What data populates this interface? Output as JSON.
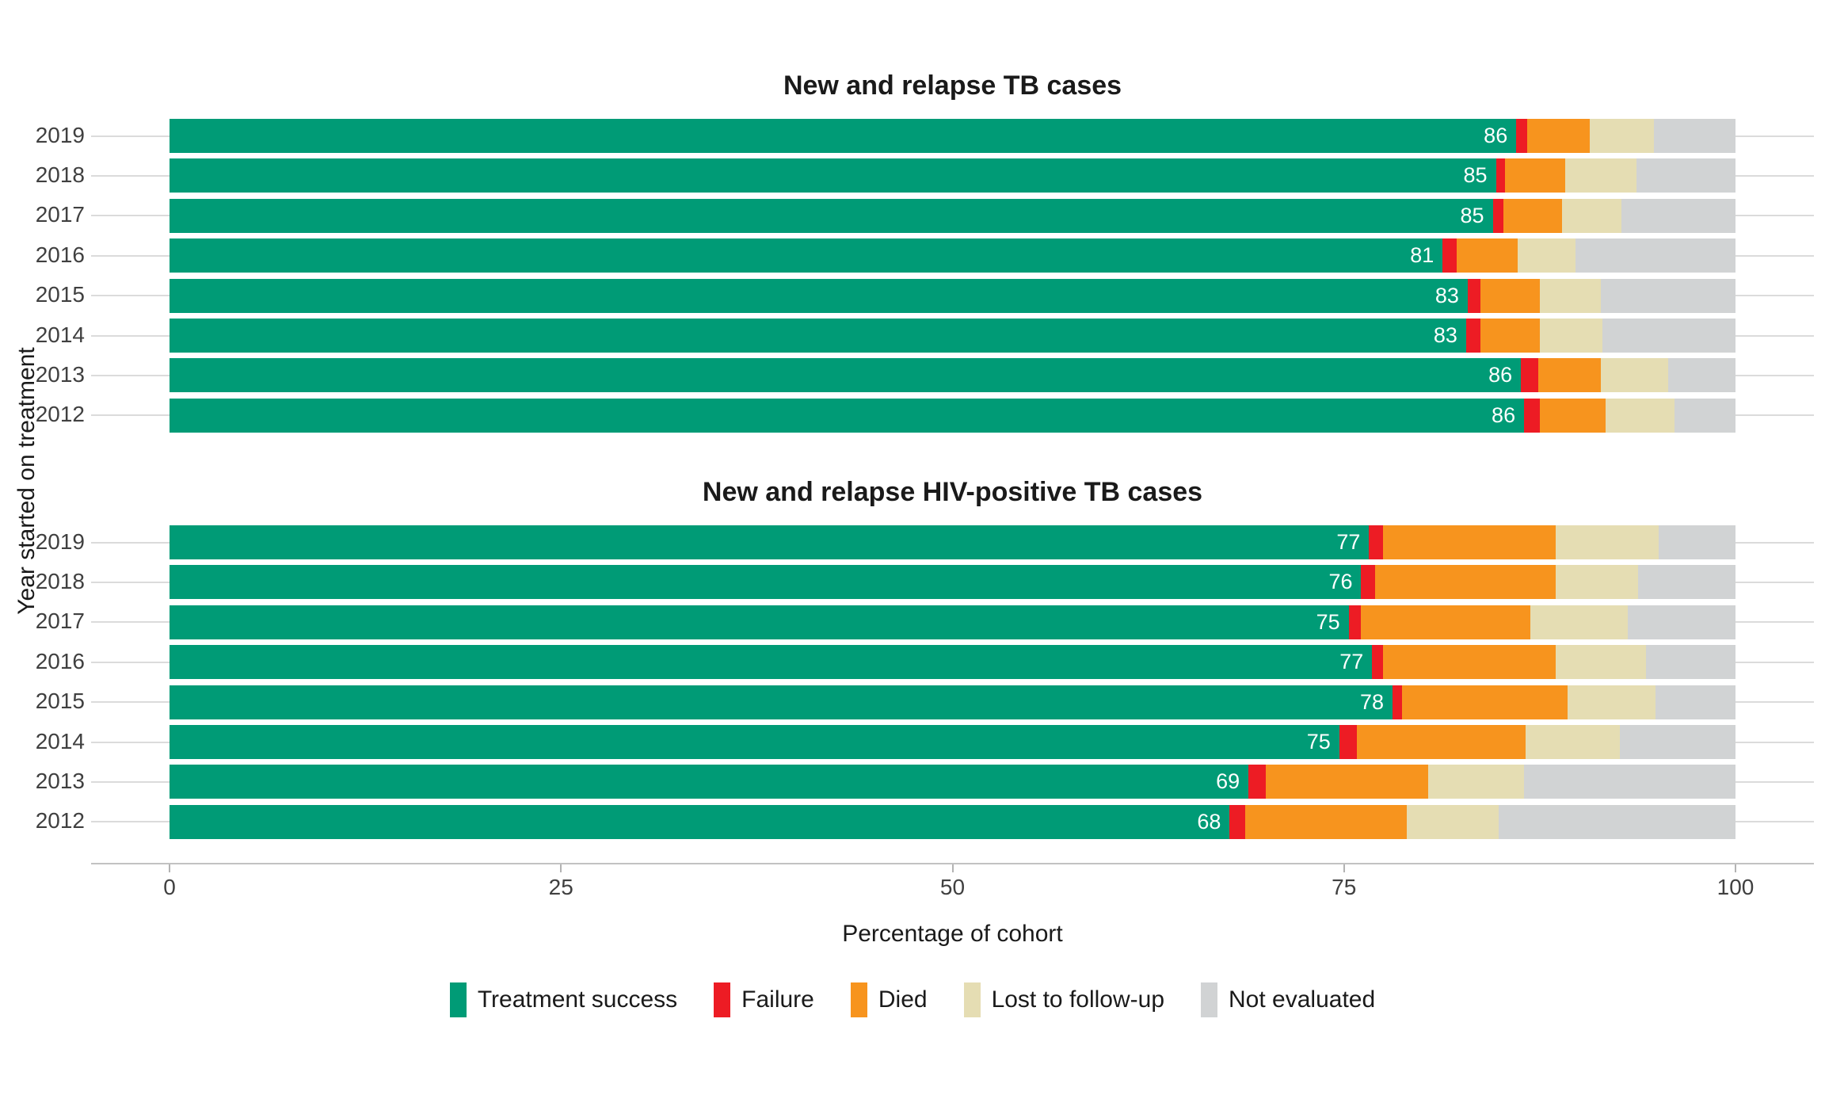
{
  "chart_data": [
    {
      "type": "bar",
      "orientation": "horizontal",
      "stacked": true,
      "title": "New and relapse TB cases",
      "categories": [
        "2019",
        "2018",
        "2017",
        "2016",
        "2015",
        "2014",
        "2013",
        "2012"
      ],
      "series": [
        {
          "name": "Treatment success",
          "values": [
            86.0,
            84.7,
            84.5,
            81.3,
            82.9,
            82.8,
            86.3,
            86.5
          ]
        },
        {
          "name": "Failure",
          "values": [
            0.7,
            0.6,
            0.7,
            0.9,
            0.8,
            0.9,
            1.1,
            1.0
          ]
        },
        {
          "name": "Died",
          "values": [
            4.0,
            3.8,
            3.7,
            3.9,
            3.8,
            3.8,
            4.0,
            4.2
          ]
        },
        {
          "name": "Lost to follow-up",
          "values": [
            4.1,
            4.6,
            3.8,
            3.7,
            3.9,
            4.0,
            4.3,
            4.4
          ]
        },
        {
          "name": "Not evaluated",
          "values": [
            5.2,
            6.3,
            7.3,
            10.2,
            8.6,
            8.5,
            4.3,
            3.9
          ]
        }
      ],
      "bar_labels": [
        "86",
        "85",
        "85",
        "81",
        "83",
        "83",
        "86",
        "86"
      ],
      "xlim": [
        0,
        100
      ],
      "x_ticks": [
        0,
        25,
        50,
        75,
        100
      ],
      "legend_position": "bottom",
      "grid": "horizontal-only"
    },
    {
      "type": "bar",
      "orientation": "horizontal",
      "stacked": true,
      "title": "New and relapse HIV-positive TB cases",
      "categories": [
        "2019",
        "2018",
        "2017",
        "2016",
        "2015",
        "2014",
        "2013",
        "2012"
      ],
      "series": [
        {
          "name": "Treatment success",
          "values": [
            76.6,
            76.1,
            75.3,
            76.8,
            78.1,
            74.7,
            68.9,
            67.7
          ]
        },
        {
          "name": "Failure",
          "values": [
            0.9,
            0.9,
            0.8,
            0.7,
            0.6,
            1.1,
            1.1,
            1.0
          ]
        },
        {
          "name": "Died",
          "values": [
            11.0,
            11.5,
            10.8,
            11.0,
            10.6,
            10.8,
            10.4,
            10.3
          ]
        },
        {
          "name": "Lost to follow-up",
          "values": [
            6.6,
            5.3,
            6.2,
            5.8,
            5.6,
            6.0,
            6.1,
            5.9
          ]
        },
        {
          "name": "Not evaluated",
          "values": [
            4.9,
            6.2,
            6.9,
            5.7,
            5.1,
            7.4,
            13.5,
            15.1
          ]
        }
      ],
      "bar_labels": [
        "77",
        "76",
        "75",
        "77",
        "78",
        "75",
        "69",
        "68"
      ],
      "xlim": [
        0,
        100
      ],
      "x_ticks": [
        0,
        25,
        50,
        75,
        100
      ],
      "legend_position": "bottom",
      "grid": "horizontal-only"
    }
  ],
  "y_axis": {
    "label": "Year started on treatment"
  },
  "x_axis": {
    "label": "Percentage of cohort",
    "ticks": [
      "0",
      "25",
      "50",
      "75",
      "100"
    ]
  },
  "legend": {
    "items": [
      {
        "label": "Treatment success",
        "color": "#009B76"
      },
      {
        "label": "Failure",
        "color": "#ED1C24"
      },
      {
        "label": "Died",
        "color": "#F7941E"
      },
      {
        "label": "Lost to follow-up",
        "color": "#E5DDB3"
      },
      {
        "label": "Not evaluated",
        "color": "#D1D3D4"
      }
    ]
  },
  "colors": {
    "treatment_success": "#009B76",
    "failure": "#ED1C24",
    "died": "#F7941E",
    "lost_to_follow_up": "#E5DDB3",
    "not_evaluated": "#D1D3D4",
    "gridline": "#DBDBDB",
    "axis_line": "#C2C2C2"
  }
}
